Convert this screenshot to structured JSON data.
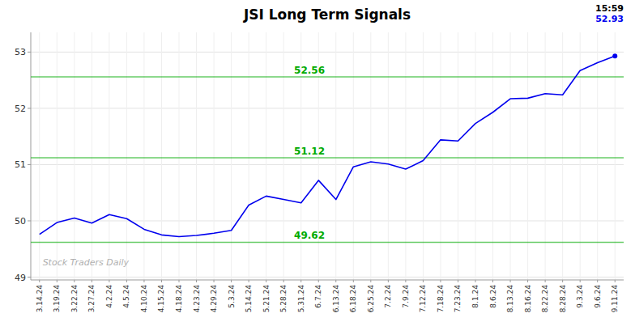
{
  "chart_data": {
    "type": "line",
    "title": "JSI Long Term Signals",
    "categories": [
      "3.14.24",
      "3.19.24",
      "3.22.24",
      "3.27.24",
      "4.2.24",
      "4.5.24",
      "4.10.24",
      "4.15.24",
      "4.18.24",
      "4.23.24",
      "4.29.24",
      "5.3.24",
      "5.14.24",
      "5.21.24",
      "5.28.24",
      "5.31.24",
      "6.7.24",
      "6.13.24",
      "6.18.24",
      "6.25.24",
      "7.2.24",
      "7.9.24",
      "7.12.24",
      "7.18.24",
      "7.23.24",
      "8.1.24",
      "8.6.24",
      "8.13.24",
      "8.16.24",
      "8.22.24",
      "8.28.24",
      "9.3.24",
      "9.6.24",
      "9.11.24"
    ],
    "values": [
      49.76,
      49.97,
      50.05,
      49.96,
      50.11,
      50.04,
      49.85,
      49.75,
      49.72,
      49.74,
      49.78,
      49.83,
      50.28,
      50.44,
      50.38,
      50.32,
      50.72,
      50.38,
      50.96,
      51.05,
      51.01,
      50.92,
      51.07,
      51.44,
      51.42,
      51.73,
      51.93,
      52.17,
      52.18,
      52.26,
      52.24,
      52.67,
      52.81,
      52.93
    ],
    "color": "#0000ee",
    "signal_lines": {
      "values": [
        49.62,
        51.12,
        52.56
      ],
      "color": "#00aa00"
    },
    "annotations": [
      "15:59",
      "52.93"
    ],
    "watermark": "Stock Traders Daily",
    "ylim": [
      48.95,
      53.35
    ],
    "yticks": [
      49,
      50,
      51,
      52,
      53
    ],
    "grid": true
  }
}
